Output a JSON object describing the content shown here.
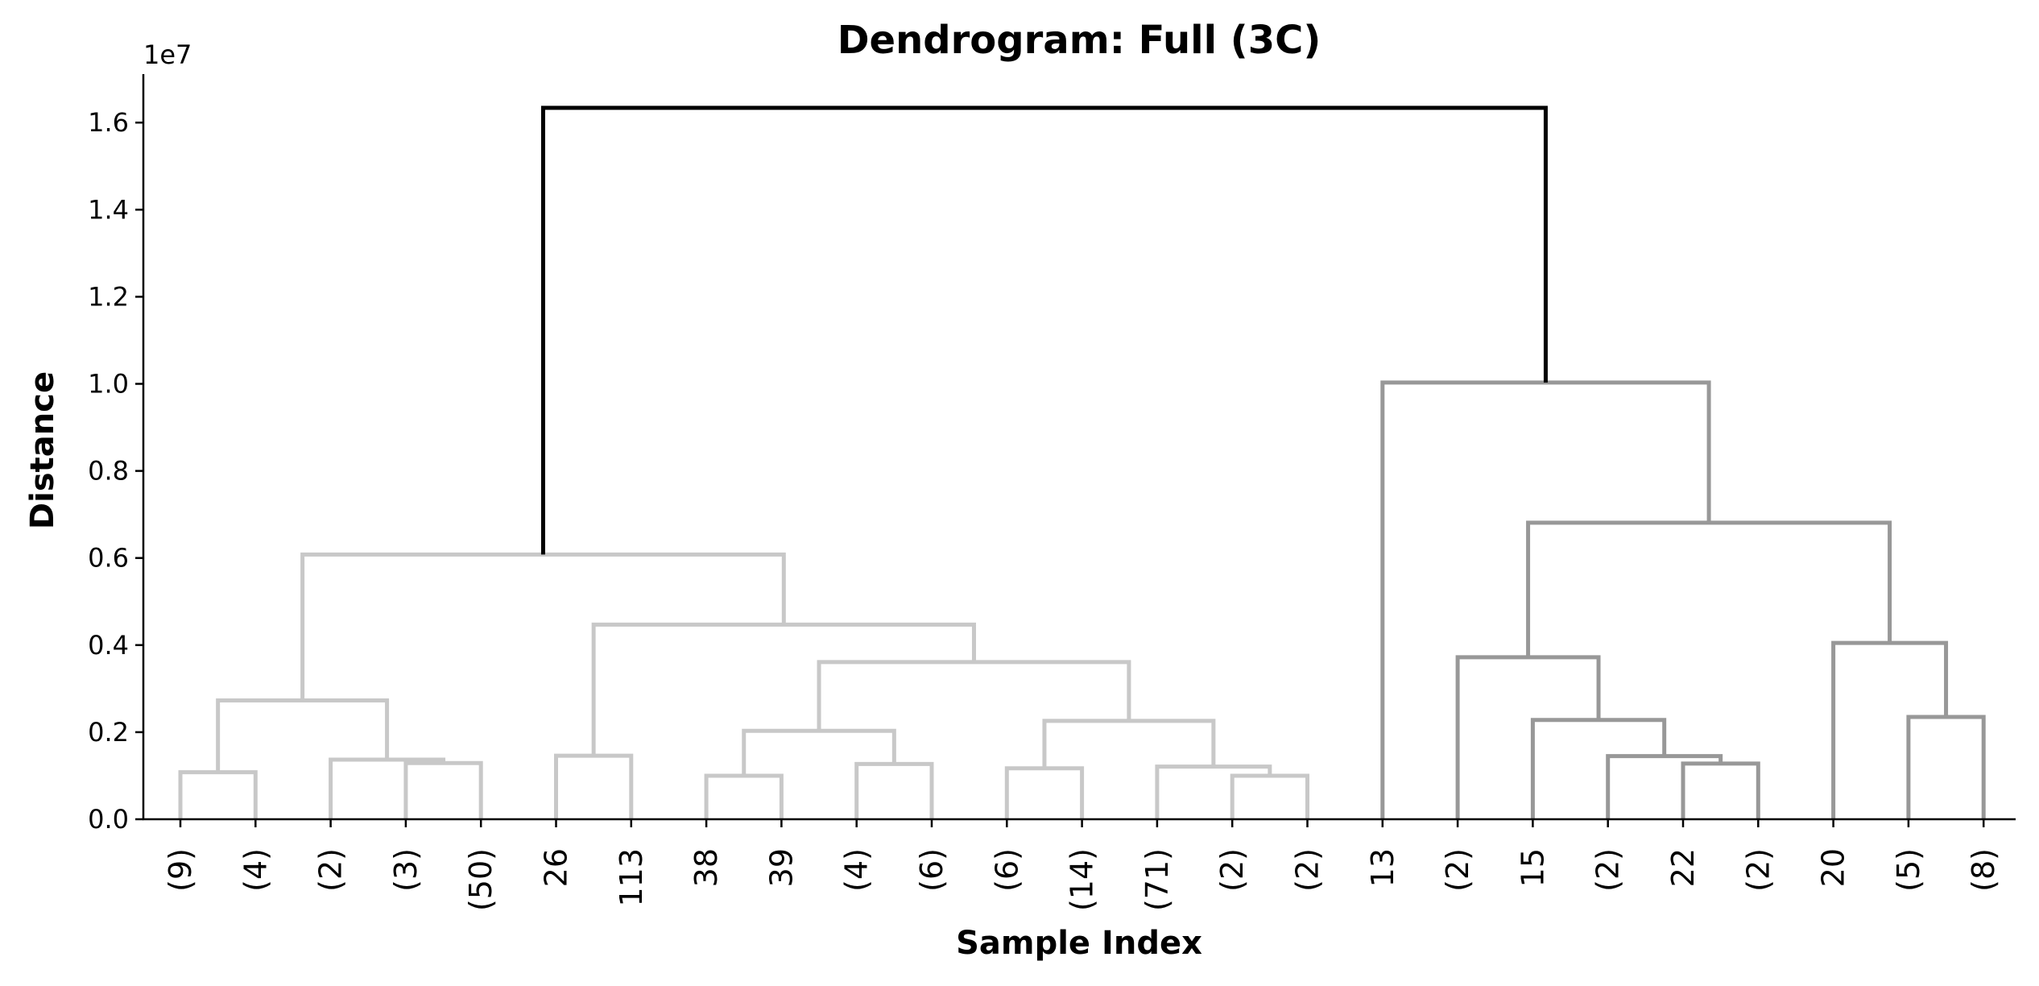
{
  "chart_data": {
    "type": "dendrogram",
    "title": "Dendrogram: Full (3C)",
    "xlabel": "Sample Index",
    "ylabel": "Distance",
    "y_offset_label": "1e7",
    "ylim": [
      0,
      1.71
    ],
    "y_ticks": [
      0.0,
      0.2,
      0.4,
      0.6,
      0.8,
      1.0,
      1.2,
      1.4,
      1.6
    ],
    "y_tick_labels": [
      "0.0",
      "0.2",
      "0.4",
      "0.6",
      "0.8",
      "1.0",
      "1.2",
      "1.4",
      "1.6"
    ],
    "grid": false,
    "leaves": [
      "(9)",
      "(4)",
      "(2)",
      "(3)",
      "(50)",
      "26",
      "113",
      "38",
      "39",
      "(4)",
      "(6)",
      "(6)",
      "(14)",
      "(71)",
      "(2)",
      "(2)",
      "13",
      "(2)",
      "15",
      "(2)",
      "22",
      "(2)",
      "20",
      "(5)",
      "(8)"
    ],
    "colors": {
      "cluster_left": "#c8c8c8",
      "cluster_right": "#989898",
      "root": "#000000"
    },
    "merges": [
      {
        "id": "n0",
        "left": "L0",
        "right": "L1",
        "height": 0.108,
        "cluster": "left"
      },
      {
        "id": "n1",
        "left": "L3",
        "right": "L4",
        "height": 0.129,
        "cluster": "left"
      },
      {
        "id": "n2",
        "left": "L2",
        "right": "n1",
        "height": 0.137,
        "cluster": "left"
      },
      {
        "id": "n3",
        "left": "n0",
        "right": "n2",
        "height": 0.273,
        "cluster": "left"
      },
      {
        "id": "n4",
        "left": "L5",
        "right": "L6",
        "height": 0.146,
        "cluster": "left"
      },
      {
        "id": "n5",
        "left": "L7",
        "right": "L8",
        "height": 0.1,
        "cluster": "left"
      },
      {
        "id": "n6",
        "left": "L9",
        "right": "L10",
        "height": 0.127,
        "cluster": "left"
      },
      {
        "id": "n7",
        "left": "n5",
        "right": "n6",
        "height": 0.203,
        "cluster": "left"
      },
      {
        "id": "n8",
        "left": "L11",
        "right": "L12",
        "height": 0.117,
        "cluster": "left"
      },
      {
        "id": "n9",
        "left": "L14",
        "right": "L15",
        "height": 0.1,
        "cluster": "left"
      },
      {
        "id": "n10",
        "left": "L13",
        "right": "n9",
        "height": 0.121,
        "cluster": "left"
      },
      {
        "id": "n11",
        "left": "n8",
        "right": "n10",
        "height": 0.226,
        "cluster": "left"
      },
      {
        "id": "n12",
        "left": "n7",
        "right": "n11",
        "height": 0.361,
        "cluster": "left"
      },
      {
        "id": "n13",
        "left": "n4",
        "right": "n12",
        "height": 0.447,
        "cluster": "left"
      },
      {
        "id": "n14",
        "left": "n3",
        "right": "n13",
        "height": 0.608,
        "cluster": "left"
      },
      {
        "id": "n15",
        "left": "L20",
        "right": "L21",
        "height": 0.128,
        "cluster": "right"
      },
      {
        "id": "n16",
        "left": "L19",
        "right": "n15",
        "height": 0.145,
        "cluster": "right"
      },
      {
        "id": "n17",
        "left": "L18",
        "right": "n16",
        "height": 0.228,
        "cluster": "right"
      },
      {
        "id": "n18",
        "left": "L17",
        "right": "n17",
        "height": 0.372,
        "cluster": "right"
      },
      {
        "id": "n19",
        "left": "L23",
        "right": "L24",
        "height": 0.235,
        "cluster": "right"
      },
      {
        "id": "n20",
        "left": "L22",
        "right": "n19",
        "height": 0.405,
        "cluster": "right"
      },
      {
        "id": "n21",
        "left": "n18",
        "right": "n20",
        "height": 0.681,
        "cluster": "right"
      },
      {
        "id": "n22",
        "left": "L16",
        "right": "n21",
        "height": 1.003,
        "cluster": "right"
      },
      {
        "id": "n23",
        "left": "n14",
        "right": "n22",
        "height": 1.634,
        "cluster": "root"
      }
    ]
  }
}
